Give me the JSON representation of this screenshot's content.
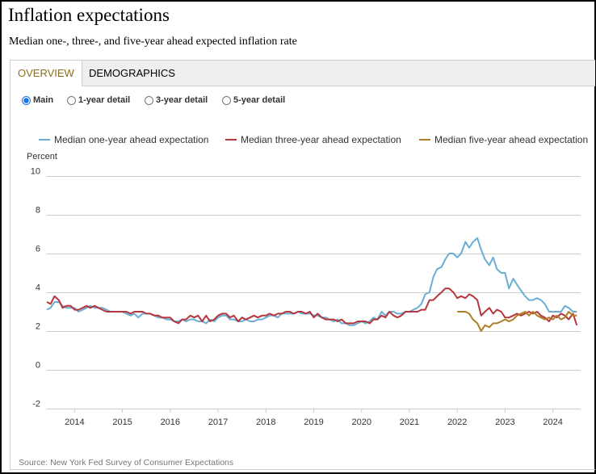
{
  "header": {
    "title": "Inflation expectations",
    "subtitle": "Median one-, three-, and five-year ahead expected inflation rate"
  },
  "tabs": [
    {
      "label": "OVERVIEW",
      "active": true
    },
    {
      "label": "DEMOGRAPHICS",
      "active": false
    }
  ],
  "options": [
    {
      "label": "Main",
      "selected": true
    },
    {
      "label": "1-year detail",
      "selected": false
    },
    {
      "label": "3-year detail",
      "selected": false
    },
    {
      "label": "5-year detail",
      "selected": false
    }
  ],
  "source": "Source: New York Fed Survey of Consumer Expectations",
  "chart_data": {
    "type": "line",
    "ylabel": "Percent",
    "ylim": [
      -2,
      10
    ],
    "yticks": [
      10,
      8,
      6,
      4,
      2,
      0,
      -2
    ],
    "xlim": [
      2013.42,
      2024.58
    ],
    "xticks": [
      2014,
      2015,
      2016,
      2017,
      2018,
      2019,
      2020,
      2021,
      2022,
      2023,
      2024
    ],
    "grid": true,
    "legend": "top",
    "series": [
      {
        "name": "Median one-year ahead expectation",
        "color": "#6aaed6",
        "points": [
          [
            2013.42,
            3.1
          ],
          [
            2013.5,
            3.2
          ],
          [
            2013.58,
            3.5
          ],
          [
            2013.67,
            3.5
          ],
          [
            2013.75,
            3.3
          ],
          [
            2013.83,
            3.2
          ],
          [
            2013.92,
            3.2
          ],
          [
            2014.0,
            3.2
          ],
          [
            2014.08,
            3.0
          ],
          [
            2014.17,
            3.1
          ],
          [
            2014.25,
            3.2
          ],
          [
            2014.33,
            3.3
          ],
          [
            2014.42,
            3.2
          ],
          [
            2014.5,
            3.2
          ],
          [
            2014.58,
            3.2
          ],
          [
            2014.67,
            3.1
          ],
          [
            2014.75,
            3.0
          ],
          [
            2014.83,
            3.0
          ],
          [
            2014.92,
            3.0
          ],
          [
            2015.0,
            3.0
          ],
          [
            2015.08,
            2.9
          ],
          [
            2015.17,
            2.8
          ],
          [
            2015.25,
            2.9
          ],
          [
            2015.33,
            2.7
          ],
          [
            2015.42,
            2.9
          ],
          [
            2015.5,
            2.9
          ],
          [
            2015.58,
            2.9
          ],
          [
            2015.67,
            2.8
          ],
          [
            2015.75,
            2.7
          ],
          [
            2015.83,
            2.7
          ],
          [
            2015.92,
            2.6
          ],
          [
            2016.0,
            2.6
          ],
          [
            2016.08,
            2.5
          ],
          [
            2016.17,
            2.5
          ],
          [
            2016.25,
            2.6
          ],
          [
            2016.33,
            2.5
          ],
          [
            2016.42,
            2.6
          ],
          [
            2016.5,
            2.6
          ],
          [
            2016.58,
            2.5
          ],
          [
            2016.67,
            2.5
          ],
          [
            2016.75,
            2.4
          ],
          [
            2016.83,
            2.6
          ],
          [
            2016.92,
            2.5
          ],
          [
            2017.0,
            2.7
          ],
          [
            2017.08,
            2.8
          ],
          [
            2017.17,
            2.8
          ],
          [
            2017.25,
            2.6
          ],
          [
            2017.33,
            2.6
          ],
          [
            2017.42,
            2.5
          ],
          [
            2017.5,
            2.5
          ],
          [
            2017.58,
            2.6
          ],
          [
            2017.67,
            2.5
          ],
          [
            2017.75,
            2.5
          ],
          [
            2017.83,
            2.6
          ],
          [
            2017.92,
            2.6
          ],
          [
            2018.0,
            2.7
          ],
          [
            2018.08,
            2.8
          ],
          [
            2018.17,
            2.8
          ],
          [
            2018.25,
            2.7
          ],
          [
            2018.33,
            2.9
          ],
          [
            2018.42,
            2.9
          ],
          [
            2018.5,
            2.9
          ],
          [
            2018.58,
            2.9
          ],
          [
            2018.67,
            3.0
          ],
          [
            2018.75,
            2.9
          ],
          [
            2018.83,
            2.9
          ],
          [
            2018.92,
            2.9
          ],
          [
            2019.0,
            2.8
          ],
          [
            2019.08,
            2.8
          ],
          [
            2019.17,
            2.7
          ],
          [
            2019.25,
            2.7
          ],
          [
            2019.33,
            2.6
          ],
          [
            2019.42,
            2.5
          ],
          [
            2019.5,
            2.6
          ],
          [
            2019.58,
            2.4
          ],
          [
            2019.67,
            2.4
          ],
          [
            2019.75,
            2.3
          ],
          [
            2019.83,
            2.3
          ],
          [
            2019.92,
            2.4
          ],
          [
            2020.0,
            2.5
          ],
          [
            2020.08,
            2.4
          ],
          [
            2020.17,
            2.5
          ],
          [
            2020.25,
            2.7
          ],
          [
            2020.33,
            2.6
          ],
          [
            2020.42,
            3.0
          ],
          [
            2020.5,
            2.8
          ],
          [
            2020.58,
            3.0
          ],
          [
            2020.67,
            3.0
          ],
          [
            2020.75,
            2.9
          ],
          [
            2020.83,
            2.9
          ],
          [
            2020.92,
            3.0
          ],
          [
            2021.0,
            3.0
          ],
          [
            2021.08,
            3.1
          ],
          [
            2021.17,
            3.2
          ],
          [
            2021.25,
            3.4
          ],
          [
            2021.33,
            3.9
          ],
          [
            2021.42,
            4.0
          ],
          [
            2021.5,
            4.8
          ],
          [
            2021.58,
            5.2
          ],
          [
            2021.67,
            5.3
          ],
          [
            2021.75,
            5.7
          ],
          [
            2021.83,
            6.0
          ],
          [
            2021.92,
            6.0
          ],
          [
            2022.0,
            5.8
          ],
          [
            2022.08,
            6.0
          ],
          [
            2022.17,
            6.6
          ],
          [
            2022.25,
            6.3
          ],
          [
            2022.33,
            6.6
          ],
          [
            2022.42,
            6.8
          ],
          [
            2022.5,
            6.2
          ],
          [
            2022.58,
            5.7
          ],
          [
            2022.67,
            5.4
          ],
          [
            2022.75,
            5.8
          ],
          [
            2022.83,
            5.2
          ],
          [
            2022.92,
            5.0
          ],
          [
            2023.0,
            5.0
          ],
          [
            2023.08,
            4.2
          ],
          [
            2023.17,
            4.7
          ],
          [
            2023.25,
            4.4
          ],
          [
            2023.33,
            4.1
          ],
          [
            2023.42,
            3.8
          ],
          [
            2023.5,
            3.6
          ],
          [
            2023.58,
            3.6
          ],
          [
            2023.67,
            3.7
          ],
          [
            2023.75,
            3.6
          ],
          [
            2023.83,
            3.4
          ],
          [
            2023.92,
            3.0
          ],
          [
            2024.0,
            3.0
          ],
          [
            2024.08,
            3.0
          ],
          [
            2024.17,
            3.0
          ],
          [
            2024.25,
            3.3
          ],
          [
            2024.33,
            3.2
          ],
          [
            2024.42,
            3.0
          ],
          [
            2024.5,
            3.0
          ]
        ]
      },
      {
        "name": "Median three-year ahead expectation",
        "color": "#b5363c",
        "points": [
          [
            2013.42,
            3.5
          ],
          [
            2013.5,
            3.4
          ],
          [
            2013.58,
            3.8
          ],
          [
            2013.67,
            3.6
          ],
          [
            2013.75,
            3.2
          ],
          [
            2013.83,
            3.3
          ],
          [
            2013.92,
            3.3
          ],
          [
            2014.0,
            3.1
          ],
          [
            2014.08,
            3.1
          ],
          [
            2014.17,
            3.2
          ],
          [
            2014.25,
            3.3
          ],
          [
            2014.33,
            3.2
          ],
          [
            2014.42,
            3.3
          ],
          [
            2014.5,
            3.2
          ],
          [
            2014.58,
            3.1
          ],
          [
            2014.67,
            3.0
          ],
          [
            2014.75,
            3.0
          ],
          [
            2014.83,
            3.0
          ],
          [
            2014.92,
            3.0
          ],
          [
            2015.0,
            3.0
          ],
          [
            2015.08,
            3.0
          ],
          [
            2015.17,
            2.9
          ],
          [
            2015.25,
            3.0
          ],
          [
            2015.33,
            3.0
          ],
          [
            2015.42,
            3.0
          ],
          [
            2015.5,
            2.9
          ],
          [
            2015.58,
            2.9
          ],
          [
            2015.67,
            2.8
          ],
          [
            2015.75,
            2.8
          ],
          [
            2015.83,
            2.7
          ],
          [
            2015.92,
            2.7
          ],
          [
            2016.0,
            2.7
          ],
          [
            2016.08,
            2.5
          ],
          [
            2016.17,
            2.4
          ],
          [
            2016.25,
            2.6
          ],
          [
            2016.33,
            2.6
          ],
          [
            2016.42,
            2.8
          ],
          [
            2016.5,
            2.7
          ],
          [
            2016.58,
            2.8
          ],
          [
            2016.67,
            2.5
          ],
          [
            2016.75,
            2.8
          ],
          [
            2016.83,
            2.5
          ],
          [
            2016.92,
            2.6
          ],
          [
            2017.0,
            2.8
          ],
          [
            2017.08,
            2.9
          ],
          [
            2017.17,
            2.9
          ],
          [
            2017.25,
            2.7
          ],
          [
            2017.33,
            2.8
          ],
          [
            2017.42,
            2.5
          ],
          [
            2017.5,
            2.7
          ],
          [
            2017.58,
            2.6
          ],
          [
            2017.67,
            2.7
          ],
          [
            2017.75,
            2.8
          ],
          [
            2017.83,
            2.7
          ],
          [
            2017.92,
            2.8
          ],
          [
            2018.0,
            2.8
          ],
          [
            2018.08,
            2.9
          ],
          [
            2018.17,
            2.8
          ],
          [
            2018.25,
            2.9
          ],
          [
            2018.33,
            2.9
          ],
          [
            2018.42,
            3.0
          ],
          [
            2018.5,
            3.0
          ],
          [
            2018.58,
            2.9
          ],
          [
            2018.67,
            3.0
          ],
          [
            2018.75,
            3.0
          ],
          [
            2018.83,
            2.9
          ],
          [
            2018.92,
            3.0
          ],
          [
            2019.0,
            2.7
          ],
          [
            2019.08,
            2.9
          ],
          [
            2019.17,
            2.7
          ],
          [
            2019.25,
            2.6
          ],
          [
            2019.33,
            2.6
          ],
          [
            2019.42,
            2.6
          ],
          [
            2019.5,
            2.5
          ],
          [
            2019.58,
            2.6
          ],
          [
            2019.67,
            2.4
          ],
          [
            2019.75,
            2.4
          ],
          [
            2019.83,
            2.4
          ],
          [
            2019.92,
            2.5
          ],
          [
            2020.0,
            2.5
          ],
          [
            2020.08,
            2.5
          ],
          [
            2020.17,
            2.4
          ],
          [
            2020.25,
            2.6
          ],
          [
            2020.33,
            2.6
          ],
          [
            2020.42,
            2.8
          ],
          [
            2020.5,
            2.7
          ],
          [
            2020.58,
            3.0
          ],
          [
            2020.67,
            2.8
          ],
          [
            2020.75,
            2.7
          ],
          [
            2020.83,
            2.8
          ],
          [
            2020.92,
            3.0
          ],
          [
            2021.0,
            3.0
          ],
          [
            2021.08,
            3.0
          ],
          [
            2021.17,
            3.0
          ],
          [
            2021.25,
            3.1
          ],
          [
            2021.33,
            3.1
          ],
          [
            2021.42,
            3.6
          ],
          [
            2021.5,
            3.6
          ],
          [
            2021.58,
            3.8
          ],
          [
            2021.67,
            4.0
          ],
          [
            2021.75,
            4.2
          ],
          [
            2021.83,
            4.2
          ],
          [
            2021.92,
            4.0
          ],
          [
            2022.0,
            3.7
          ],
          [
            2022.08,
            3.8
          ],
          [
            2022.17,
            3.7
          ],
          [
            2022.25,
            3.9
          ],
          [
            2022.33,
            3.8
          ],
          [
            2022.42,
            3.6
          ],
          [
            2022.5,
            2.8
          ],
          [
            2022.58,
            3.0
          ],
          [
            2022.67,
            3.2
          ],
          [
            2022.75,
            2.9
          ],
          [
            2022.83,
            3.1
          ],
          [
            2022.92,
            3.0
          ],
          [
            2023.0,
            2.7
          ],
          [
            2023.08,
            2.7
          ],
          [
            2023.17,
            2.8
          ],
          [
            2023.25,
            2.9
          ],
          [
            2023.33,
            2.8
          ],
          [
            2023.42,
            2.9
          ],
          [
            2023.5,
            3.0
          ],
          [
            2023.58,
            2.9
          ],
          [
            2023.67,
            3.0
          ],
          [
            2023.75,
            2.8
          ],
          [
            2023.83,
            2.7
          ],
          [
            2023.92,
            2.5
          ],
          [
            2024.0,
            2.8
          ],
          [
            2024.08,
            2.7
          ],
          [
            2024.17,
            2.9
          ],
          [
            2024.25,
            2.8
          ],
          [
            2024.33,
            2.6
          ],
          [
            2024.42,
            2.9
          ],
          [
            2024.5,
            2.3
          ]
        ]
      },
      {
        "name": "Median five-year ahead expectation",
        "color": "#b07e27",
        "points": [
          [
            2022.0,
            3.0
          ],
          [
            2022.08,
            3.0
          ],
          [
            2022.17,
            3.0
          ],
          [
            2022.25,
            2.9
          ],
          [
            2022.33,
            2.6
          ],
          [
            2022.42,
            2.4
          ],
          [
            2022.5,
            2.0
          ],
          [
            2022.58,
            2.3
          ],
          [
            2022.67,
            2.2
          ],
          [
            2022.75,
            2.4
          ],
          [
            2022.83,
            2.4
          ],
          [
            2022.92,
            2.5
          ],
          [
            2023.0,
            2.6
          ],
          [
            2023.08,
            2.5
          ],
          [
            2023.17,
            2.6
          ],
          [
            2023.25,
            2.8
          ],
          [
            2023.33,
            2.9
          ],
          [
            2023.42,
            3.0
          ],
          [
            2023.5,
            2.8
          ],
          [
            2023.58,
            3.0
          ],
          [
            2023.67,
            2.8
          ],
          [
            2023.75,
            2.7
          ],
          [
            2023.83,
            2.6
          ],
          [
            2023.92,
            2.7
          ],
          [
            2024.0,
            2.6
          ],
          [
            2024.08,
            2.8
          ],
          [
            2024.17,
            2.6
          ],
          [
            2024.25,
            2.7
          ],
          [
            2024.33,
            3.0
          ],
          [
            2024.42,
            2.8
          ],
          [
            2024.5,
            2.8
          ]
        ]
      }
    ]
  }
}
